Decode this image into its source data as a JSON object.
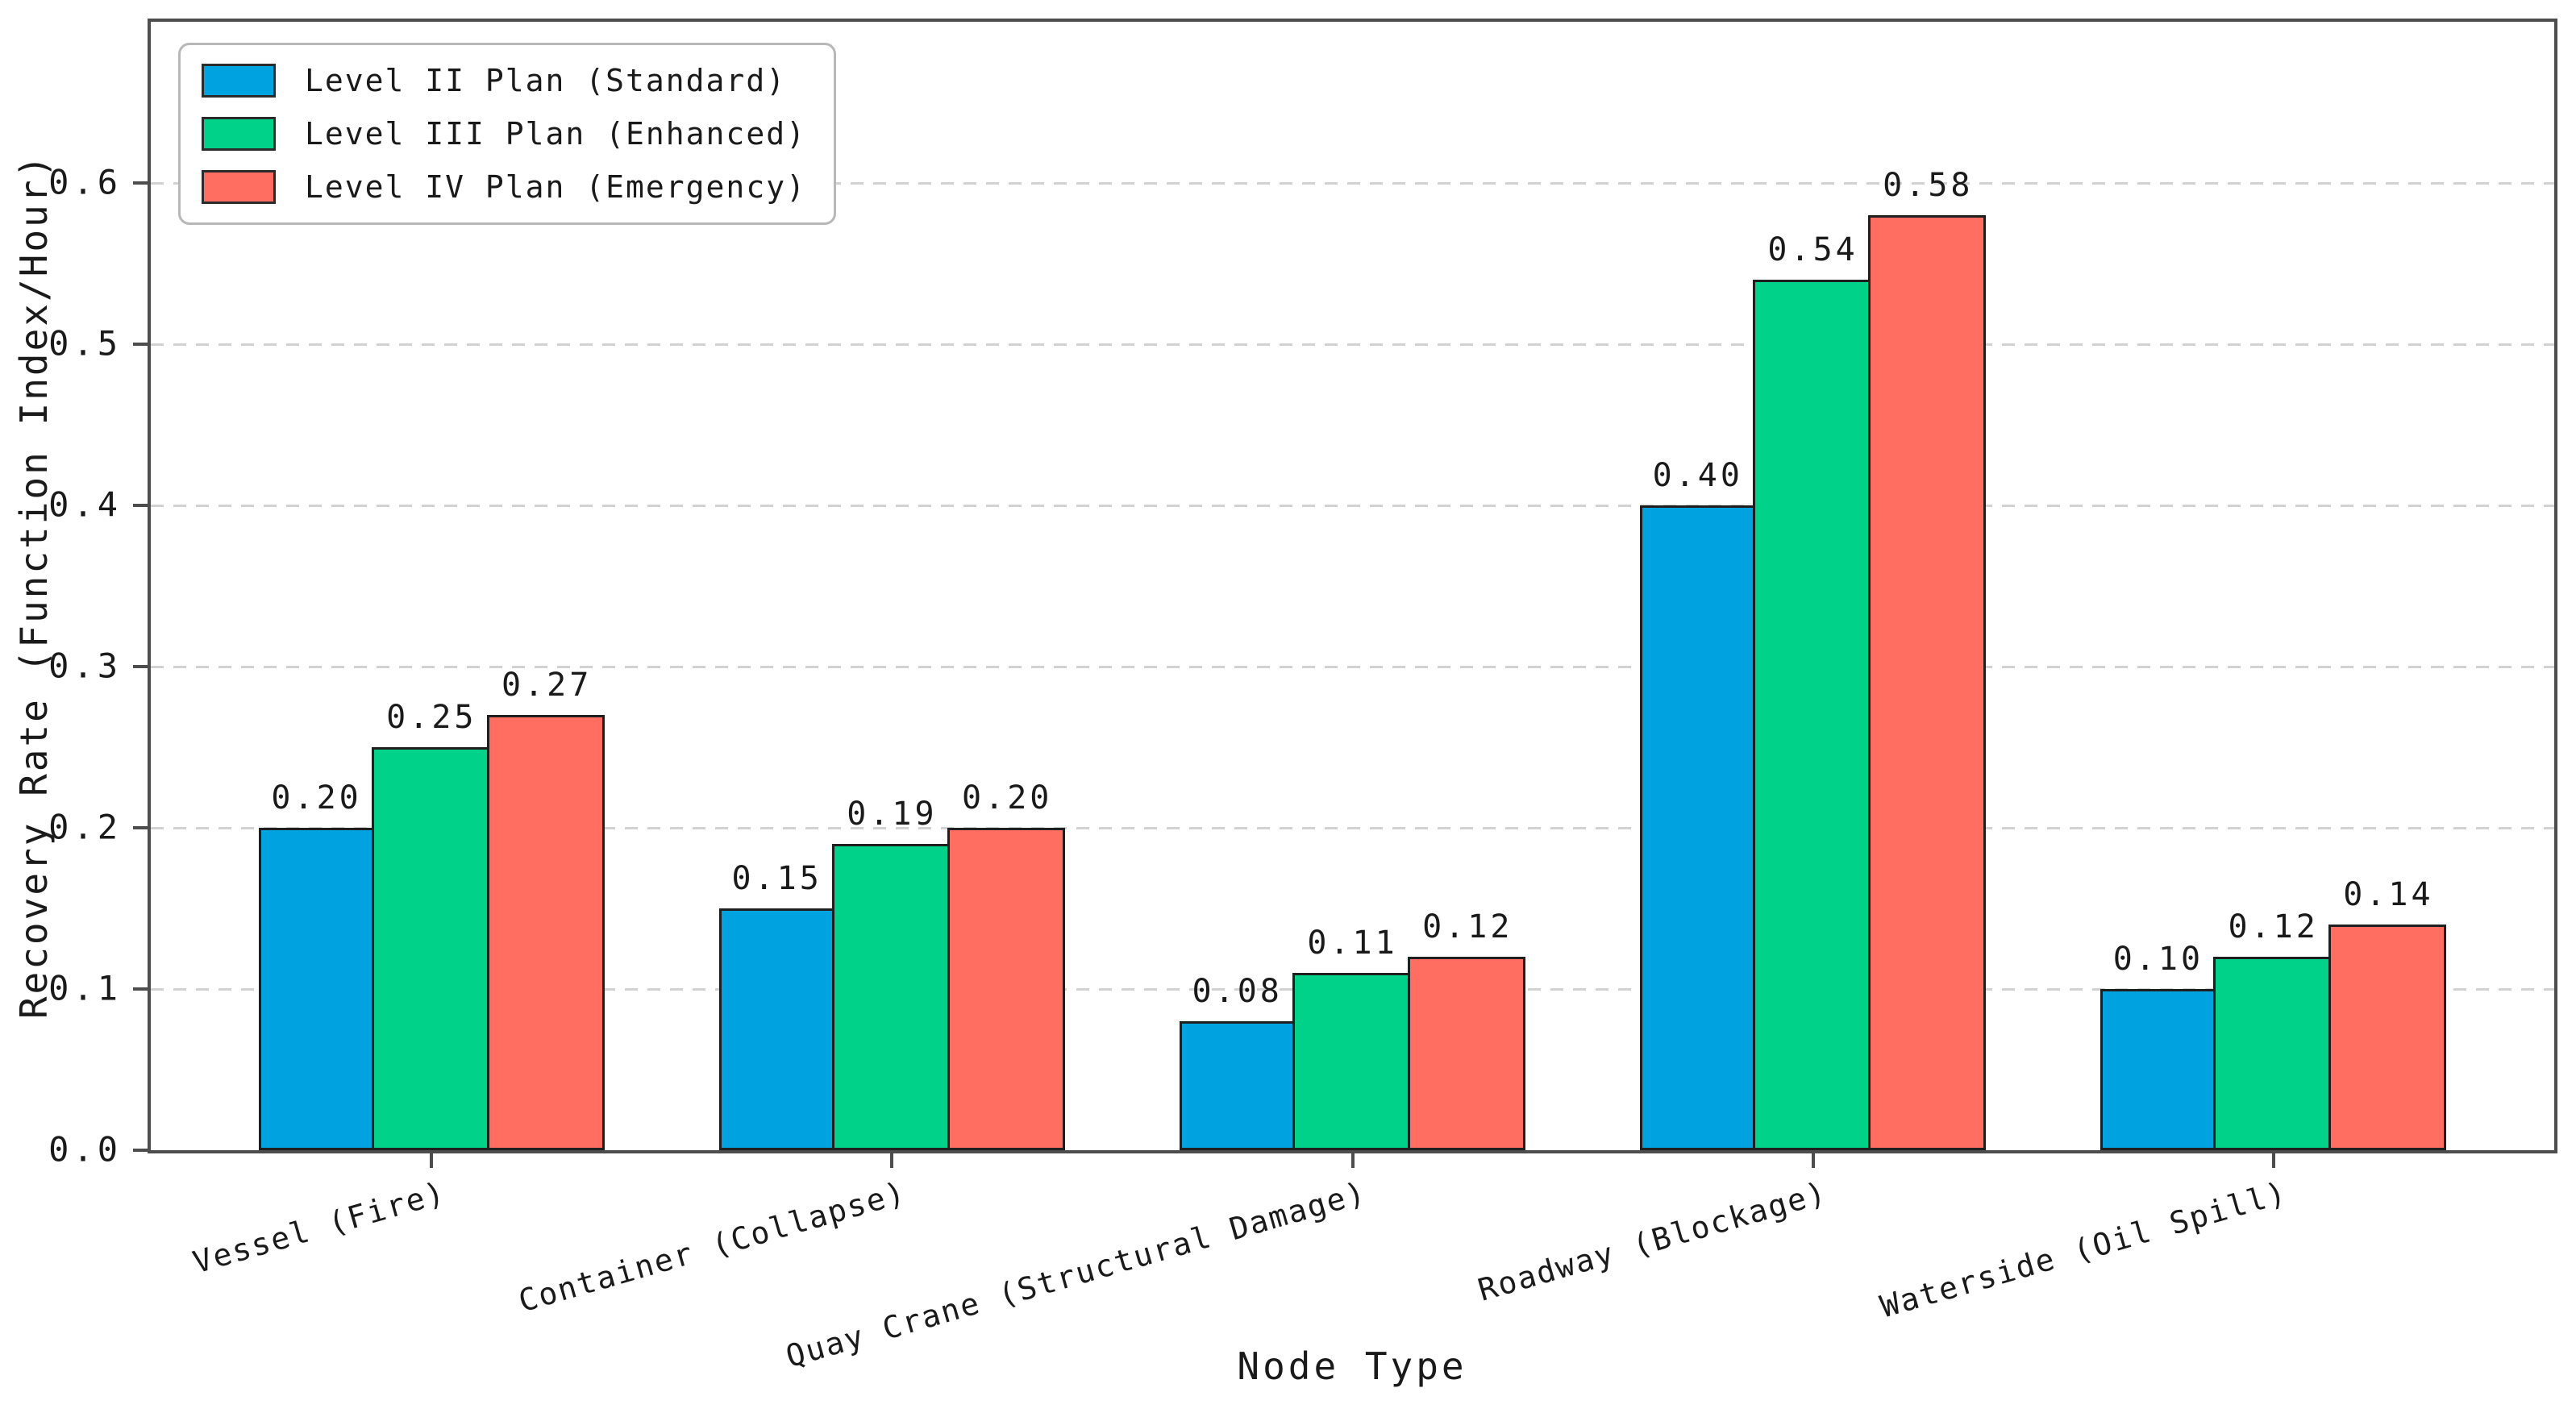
{
  "style": {
    "background": "#ffffff",
    "axis_color": "#4d4d4d",
    "grid_color": "#d2d2d2",
    "text_color": "#1a1a1a",
    "bar_edge_color": "#1f1f1f",
    "legend_border_color": "#b8b8b8"
  },
  "chart_data": {
    "type": "bar",
    "title": "",
    "xlabel": "Node Type",
    "ylabel": "Recovery Rate (Function Index/Hour)",
    "categories": [
      "Vessel (Fire)",
      "Container (Collapse)",
      "Quay Crane (Structural Damage)",
      "Roadway (Blockage)",
      "Waterside (Oil Spill)"
    ],
    "series": [
      {
        "name": "Level II Plan (Standard)",
        "color": "#00a3e0",
        "values": [
          0.2,
          0.15,
          0.08,
          0.4,
          0.1
        ]
      },
      {
        "name": "Level III Plan (Enhanced)",
        "color": "#00d389",
        "values": [
          0.25,
          0.19,
          0.11,
          0.54,
          0.12
        ]
      },
      {
        "name": "Level IV Plan (Emergency)",
        "color": "#ff6e61",
        "values": [
          0.27,
          0.2,
          0.12,
          0.58,
          0.14
        ]
      }
    ],
    "value_labels": [
      [
        "0.20",
        "0.15",
        "0.08",
        "0.40",
        "0.10"
      ],
      [
        "0.25",
        "0.19",
        "0.11",
        "0.54",
        "0.12"
      ],
      [
        "0.27",
        "0.20",
        "0.12",
        "0.58",
        "0.14"
      ]
    ],
    "yticks": [
      0.0,
      0.1,
      0.2,
      0.3,
      0.4,
      0.5,
      0.6
    ],
    "ytick_labels": [
      "0.0",
      "0.1",
      "0.2",
      "0.3",
      "0.4",
      "0.5",
      "0.6"
    ],
    "ylim": [
      0,
      0.7
    ],
    "xlim": [
      -0.61,
      4.61
    ],
    "bar_width_units": 0.25,
    "grid": true,
    "grid_style": "dashed",
    "legend_position": "upper left"
  }
}
